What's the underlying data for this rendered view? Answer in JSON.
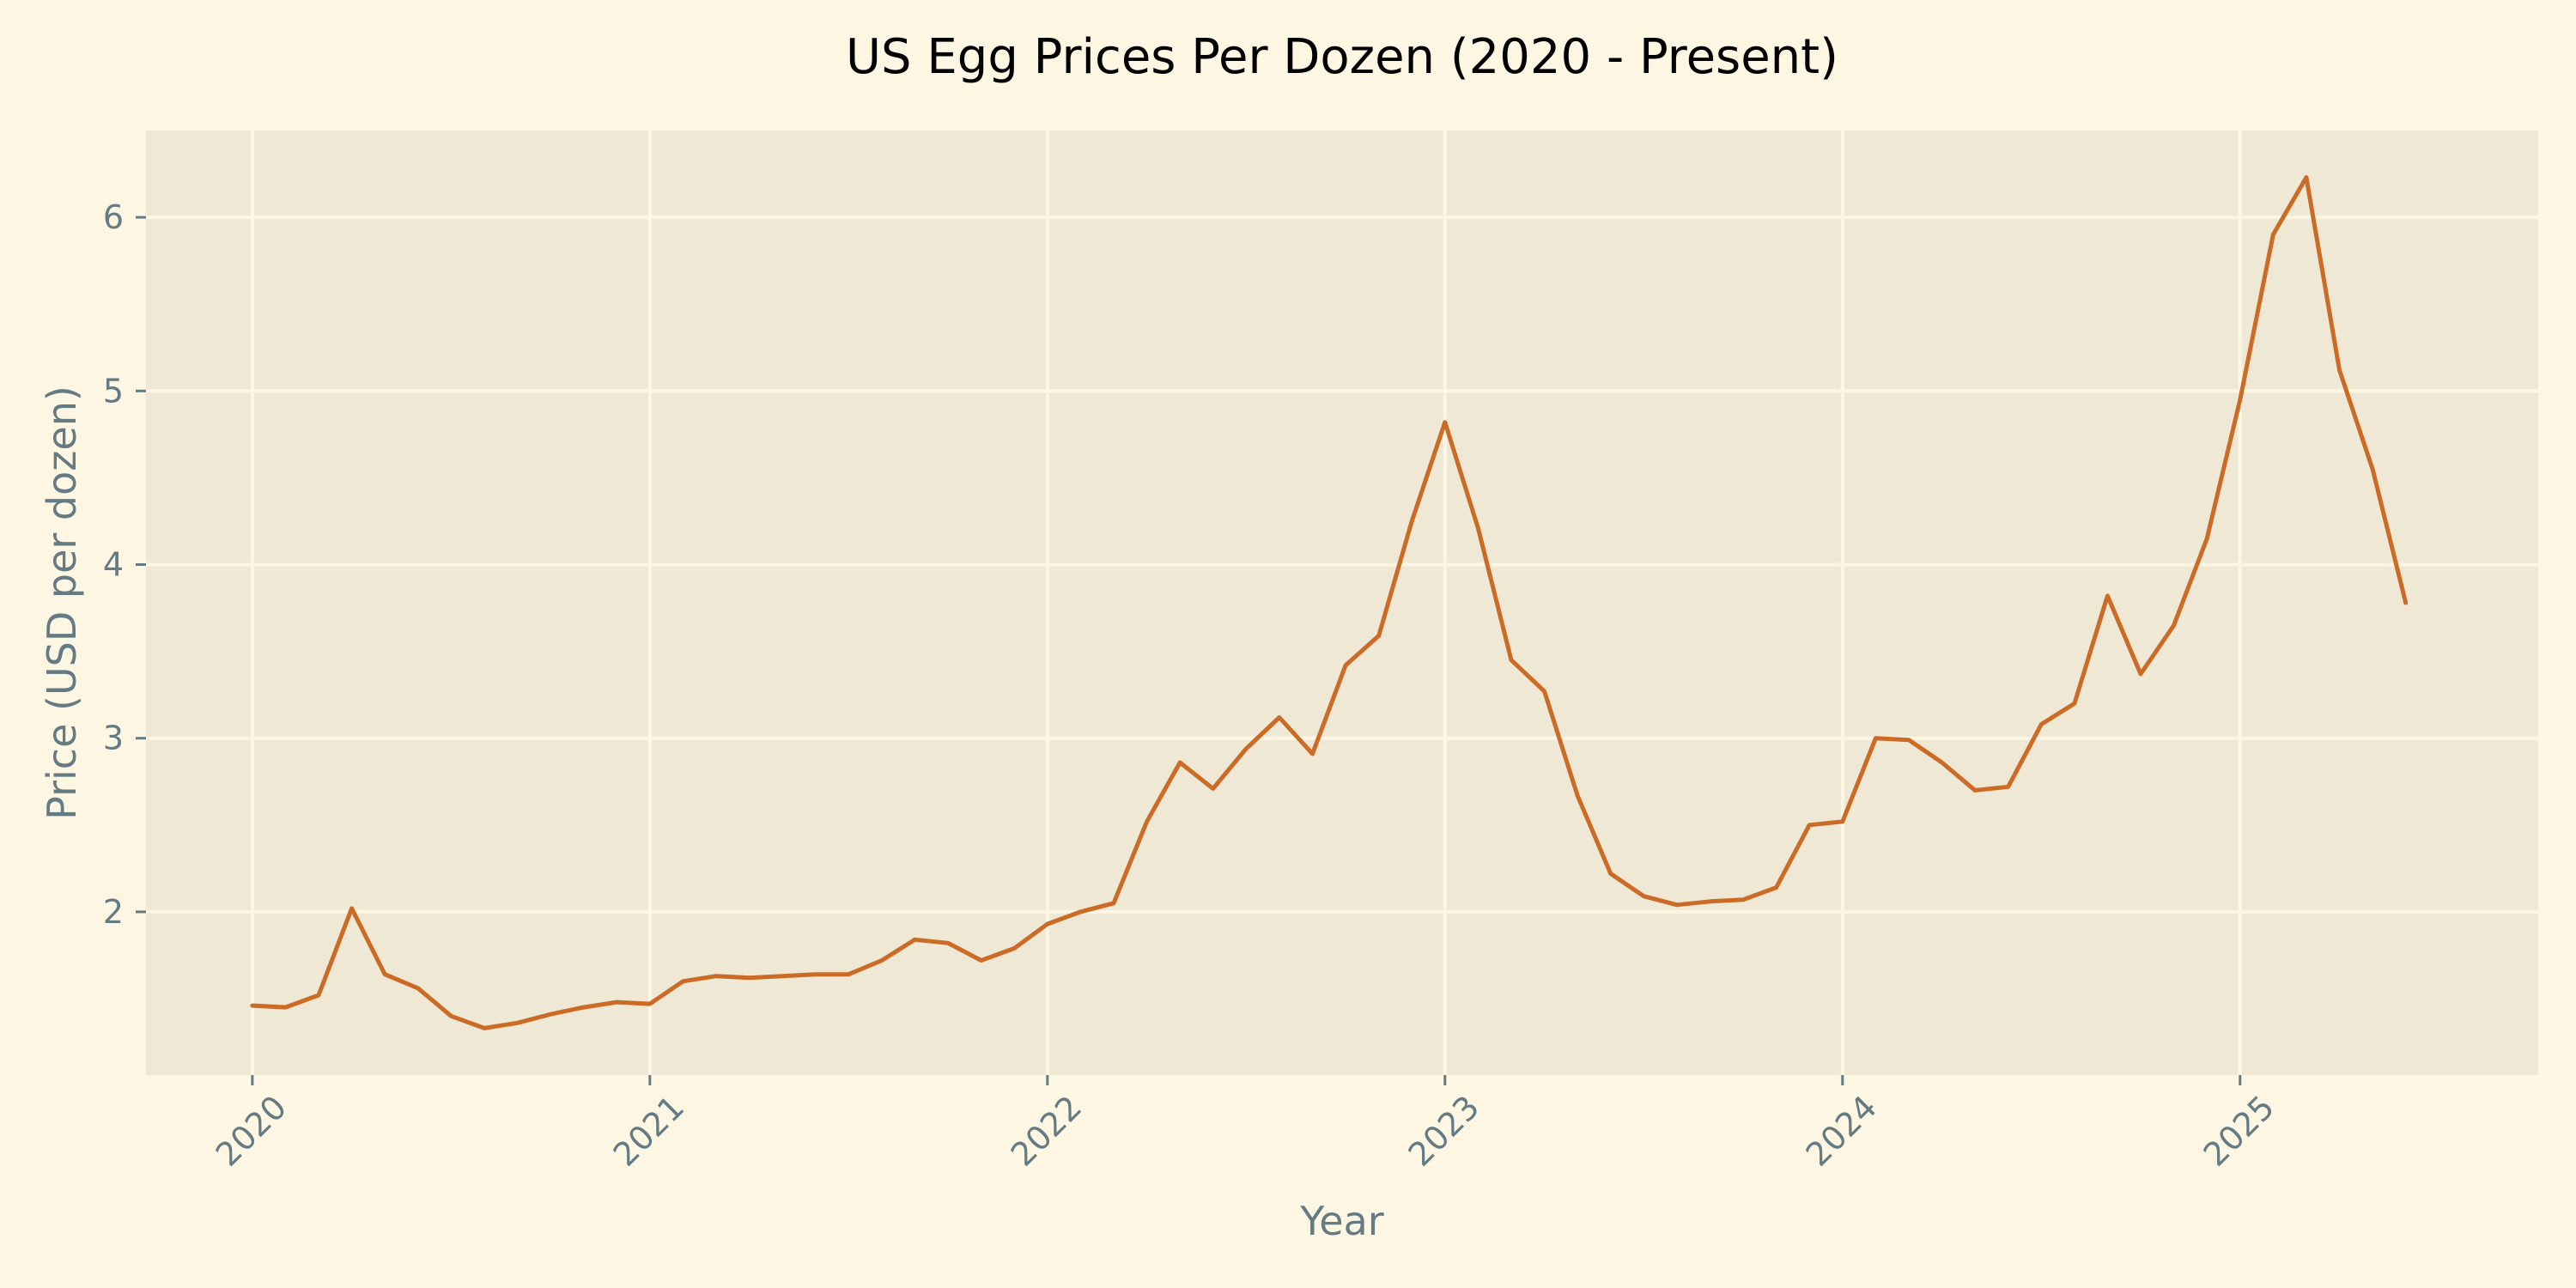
{
  "chart_data": {
    "type": "line",
    "title": "US Egg Prices Per Dozen (2020 - Present)",
    "xlabel": "Year",
    "ylabel": "Price (USD per dozen)",
    "x_ticks": [
      "2020",
      "2021",
      "2022",
      "2023",
      "2024",
      "2025"
    ],
    "y_ticks": [
      2,
      3,
      4,
      5,
      6
    ],
    "xlim": [
      "2019-09-25",
      "2025-10-01"
    ],
    "ylim": [
      1.06,
      6.5
    ],
    "grid": true,
    "legend": "none",
    "colors": {
      "background": "#fdf6e3",
      "plot_background": "#eee8d5",
      "grid": "#fdf6e3",
      "line": "#cb6b26",
      "text": "#657b83",
      "title": "#000000"
    },
    "series": [
      {
        "x": [
          "2020-01",
          "2020-02",
          "2020-03",
          "2020-04",
          "2020-05",
          "2020-06",
          "2020-07",
          "2020-08",
          "2020-09",
          "2020-10",
          "2020-11",
          "2020-12",
          "2021-01",
          "2021-02",
          "2021-03",
          "2021-04",
          "2021-05",
          "2021-06",
          "2021-07",
          "2021-08",
          "2021-09",
          "2021-10",
          "2021-11",
          "2021-12",
          "2022-01",
          "2022-02",
          "2022-03",
          "2022-04",
          "2022-05",
          "2022-06",
          "2022-07",
          "2022-08",
          "2022-09",
          "2022-10",
          "2022-11",
          "2022-12",
          "2023-01",
          "2023-02",
          "2023-03",
          "2023-04",
          "2023-05",
          "2023-06",
          "2023-07",
          "2023-08",
          "2023-09",
          "2023-10",
          "2023-11",
          "2023-12",
          "2024-01",
          "2024-02",
          "2024-03",
          "2024-04",
          "2024-05",
          "2024-06",
          "2024-07",
          "2024-08",
          "2024-09",
          "2024-10",
          "2024-11",
          "2024-12",
          "2025-01",
          "2025-02",
          "2025-03",
          "2025-04",
          "2025-05",
          "2025-06"
        ],
        "values": [
          1.46,
          1.45,
          1.52,
          2.02,
          1.64,
          1.56,
          1.4,
          1.33,
          1.36,
          1.41,
          1.45,
          1.48,
          1.47,
          1.6,
          1.63,
          1.62,
          1.63,
          1.64,
          1.64,
          1.72,
          1.84,
          1.82,
          1.72,
          1.79,
          1.93,
          2.0,
          2.05,
          2.52,
          2.86,
          2.71,
          2.94,
          3.12,
          2.91,
          3.42,
          3.59,
          4.25,
          4.82,
          4.21,
          3.45,
          3.27,
          2.67,
          2.22,
          2.09,
          2.04,
          2.06,
          2.07,
          2.14,
          2.5,
          2.52,
          3.0,
          2.99,
          2.86,
          2.7,
          2.72,
          3.08,
          3.2,
          3.82,
          3.37,
          3.65,
          4.15,
          4.95,
          5.9,
          6.23,
          5.12,
          4.55,
          3.78
        ]
      }
    ]
  }
}
